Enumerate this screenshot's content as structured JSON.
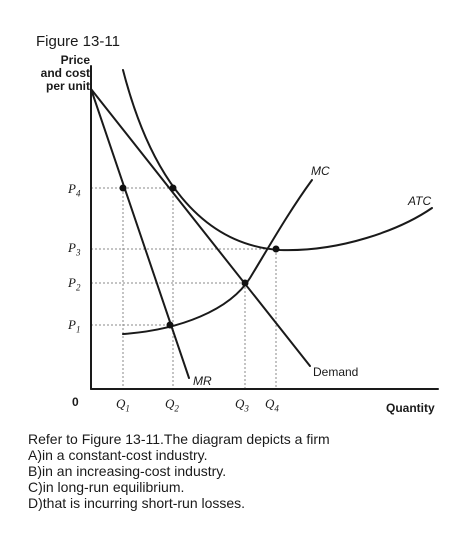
{
  "figure_title": "Figure 13-11",
  "chart_data": {
    "type": "line",
    "title": "Figure 13-11",
    "ylabel": [
      "Price",
      "and cost",
      "per unit"
    ],
    "xlabel": "Quantity",
    "origin_label": "0",
    "grid": false,
    "y_ticks": [
      {
        "id": "P4",
        "base": "P",
        "sub": "4"
      },
      {
        "id": "P3",
        "base": "P",
        "sub": "3"
      },
      {
        "id": "P2",
        "base": "P",
        "sub": "2"
      },
      {
        "id": "P1",
        "base": "P",
        "sub": "1"
      }
    ],
    "x_ticks": [
      {
        "id": "Q1",
        "base": "Q",
        "sub": "1"
      },
      {
        "id": "Q2",
        "base": "Q",
        "sub": "2"
      },
      {
        "id": "Q3",
        "base": "Q",
        "sub": "3"
      },
      {
        "id": "Q4",
        "base": "Q",
        "sub": "4"
      }
    ],
    "series": [
      {
        "name": "Demand"
      },
      {
        "name": "MR"
      },
      {
        "name": "MC"
      },
      {
        "name": "ATC"
      }
    ],
    "dashed_guides": [
      {
        "from": "P4",
        "to": "Q2"
      },
      {
        "from": "P3",
        "to": "Q4"
      },
      {
        "from": "P2",
        "to": "Q3"
      },
      {
        "from": "P1",
        "to": "Q2"
      },
      {
        "from": "P4",
        "to": "Q1"
      }
    ]
  },
  "question": {
    "stem": "Refer to Figure 13-11.The diagram depicts a firm",
    "options": [
      "A)in a constant-cost industry.",
      "B)in an increasing-cost industry.",
      "C)in long-run equilibrium.",
      "D)that is incurring short-run losses."
    ]
  }
}
